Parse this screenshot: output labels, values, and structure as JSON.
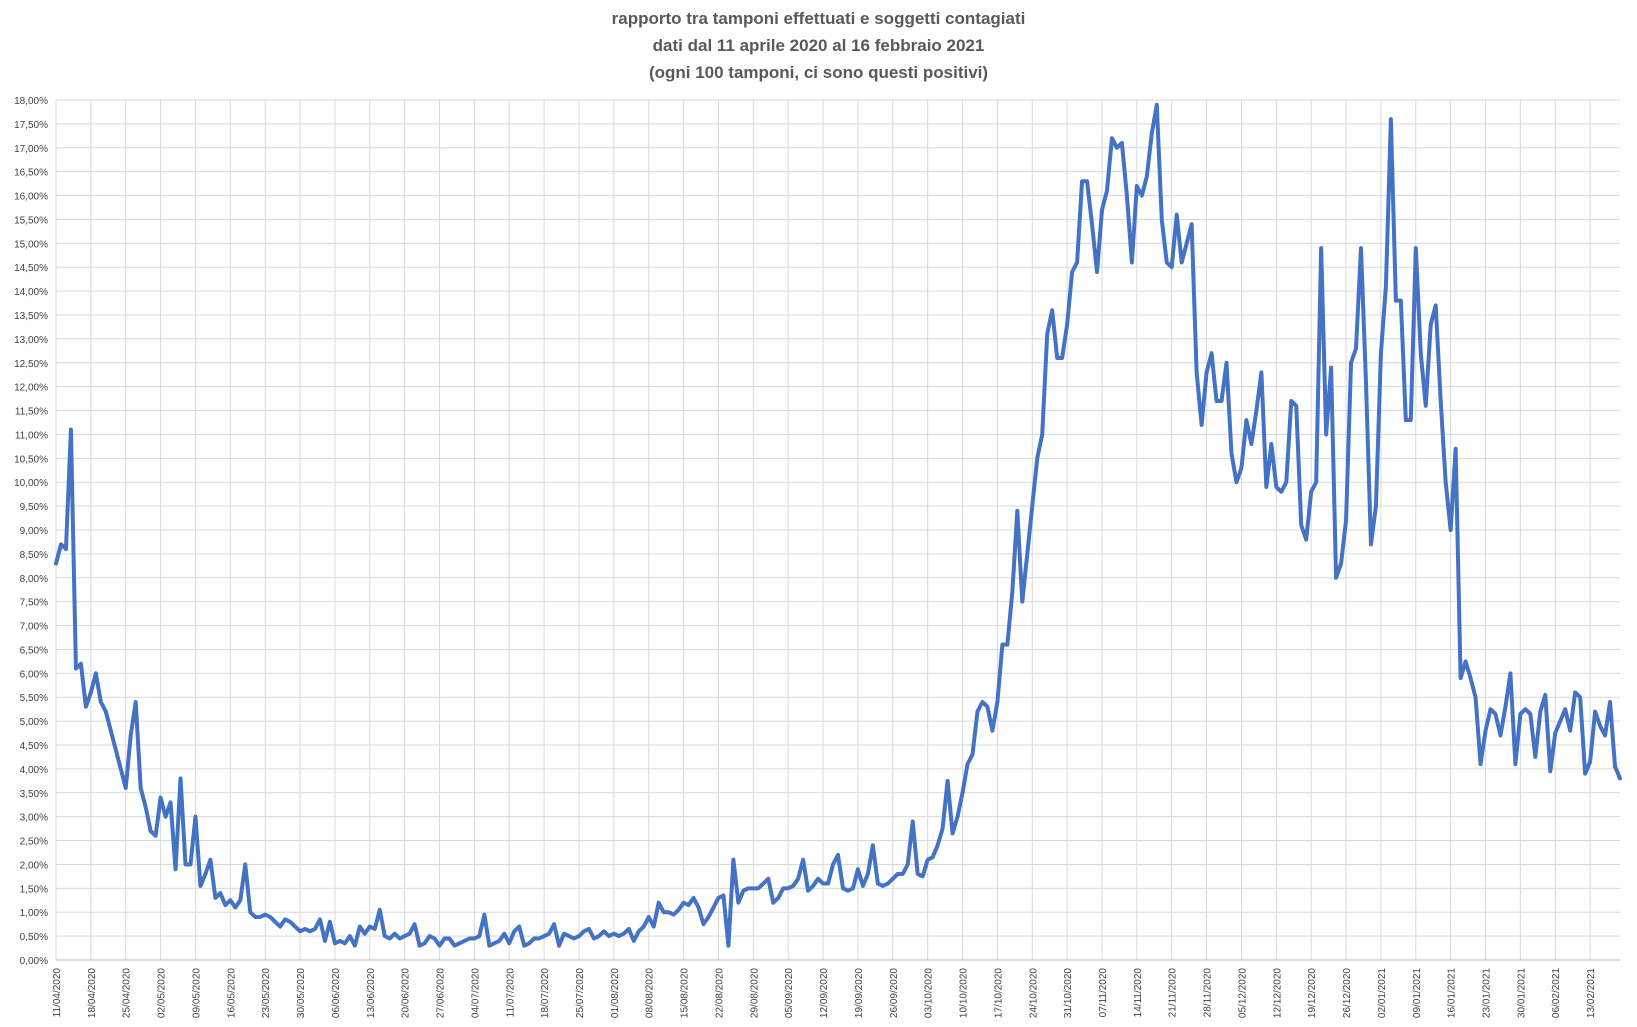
{
  "chart_data": {
    "type": "line",
    "title_lines": [
      "rapporto tra tamponi effettuati e soggetti contagiati",
      "dati dal 11 aprile 2020 al 16 febbraio 2021",
      "(ogni 100 tamponi, ci sono questi positivi)"
    ],
    "xlabel": "",
    "ylabel": "",
    "ylim": [
      0,
      18
    ],
    "y_tick_labels": [
      "0,00%",
      "0,50%",
      "1,00%",
      "1,50%",
      "2,00%",
      "2,50%",
      "3,00%",
      "3,50%",
      "4,00%",
      "4,50%",
      "5,00%",
      "5,50%",
      "6,00%",
      "6,50%",
      "7,00%",
      "7,50%",
      "8,00%",
      "8,50%",
      "9,00%",
      "9,50%",
      "10,00%",
      "10,50%",
      "11,00%",
      "11,50%",
      "12,00%",
      "12,50%",
      "13,00%",
      "13,50%",
      "14,00%",
      "14,50%",
      "15,00%",
      "15,50%",
      "16,00%",
      "16,50%",
      "17,00%",
      "17,50%",
      "18,00%"
    ],
    "x_tick_labels": [
      "11/04/2020",
      "18/04/2020",
      "25/04/2020",
      "02/05/2020",
      "09/05/2020",
      "16/05/2020",
      "23/05/2020",
      "30/05/2020",
      "06/06/2020",
      "13/06/2020",
      "20/06/2020",
      "27/06/2020",
      "04/07/2020",
      "11/07/2020",
      "18/07/2020",
      "25/07/2020",
      "01/08/2020",
      "08/08/2020",
      "15/08/2020",
      "22/08/2020",
      "29/08/2020",
      "05/09/2020",
      "12/09/2020",
      "19/09/2020",
      "26/09/2020",
      "03/10/2020",
      "10/10/2020",
      "17/10/2020",
      "24/10/2020",
      "31/10/2020",
      "07/11/2020",
      "14/11/2020",
      "21/11/2020",
      "28/11/2020",
      "05/12/2020",
      "12/12/2020",
      "19/12/2020",
      "26/12/2020",
      "02/01/2021",
      "09/01/2021",
      "16/01/2021",
      "23/01/2021",
      "30/01/2021",
      "06/02/2021",
      "13/02/2021"
    ],
    "grid": true,
    "legend": "none",
    "line_color": "#4472C4",
    "series": [
      {
        "values": [
          8.3,
          8.7,
          8.6,
          11.1,
          6.1,
          6.2,
          5.3,
          5.6,
          6.0,
          5.4,
          5.2,
          4.8,
          4.4,
          4.0,
          3.6,
          4.7,
          5.4,
          3.6,
          3.2,
          2.7,
          2.6,
          3.4,
          3.0,
          3.3,
          1.9,
          3.8,
          2.0,
          2.0,
          3.0,
          1.55,
          1.8,
          2.1,
          1.3,
          1.4,
          1.15,
          1.25,
          1.1,
          1.25,
          2.0,
          1.0,
          0.9,
          0.9,
          0.95,
          0.9,
          0.8,
          0.7,
          0.85,
          0.8,
          0.7,
          0.6,
          0.65,
          0.6,
          0.65,
          0.85,
          0.4,
          0.8,
          0.35,
          0.4,
          0.35,
          0.5,
          0.3,
          0.7,
          0.55,
          0.7,
          0.65,
          1.05,
          0.5,
          0.45,
          0.55,
          0.45,
          0.5,
          0.55,
          0.75,
          0.3,
          0.35,
          0.5,
          0.45,
          0.3,
          0.45,
          0.45,
          0.3,
          0.35,
          0.4,
          0.45,
          0.45,
          0.5,
          0.95,
          0.3,
          0.35,
          0.4,
          0.55,
          0.35,
          0.6,
          0.7,
          0.3,
          0.35,
          0.45,
          0.45,
          0.5,
          0.55,
          0.75,
          0.3,
          0.55,
          0.5,
          0.45,
          0.5,
          0.6,
          0.65,
          0.45,
          0.5,
          0.6,
          0.5,
          0.55,
          0.5,
          0.55,
          0.65,
          0.4,
          0.6,
          0.7,
          0.9,
          0.7,
          1.2,
          1.0,
          1.0,
          0.95,
          1.05,
          1.2,
          1.15,
          1.3,
          1.1,
          0.75,
          0.9,
          1.1,
          1.3,
          1.35,
          0.3,
          2.1,
          1.2,
          1.45,
          1.5,
          1.5,
          1.5,
          1.6,
          1.7,
          1.2,
          1.3,
          1.5,
          1.5,
          1.55,
          1.7,
          2.1,
          1.45,
          1.55,
          1.7,
          1.6,
          1.6,
          2.0,
          2.2,
          1.5,
          1.45,
          1.5,
          1.9,
          1.55,
          1.8,
          2.4,
          1.6,
          1.55,
          1.6,
          1.7,
          1.8,
          1.8,
          2.0,
          2.9,
          1.8,
          1.75,
          2.1,
          2.15,
          2.4,
          2.75,
          3.75,
          2.65,
          3.0,
          3.5,
          4.1,
          4.3,
          5.2,
          5.4,
          5.3,
          4.8,
          5.4,
          6.6,
          6.6,
          7.7,
          9.4,
          7.5,
          8.5,
          9.5,
          10.5,
          11.0,
          13.1,
          13.6,
          12.6,
          12.6,
          13.3,
          14.4,
          14.6,
          16.3,
          16.3,
          15.4,
          14.4,
          15.7,
          16.1,
          17.2,
          17.0,
          17.1,
          16.0,
          14.6,
          16.2,
          16.0,
          16.4,
          17.3,
          17.9,
          15.5,
          14.6,
          14.5,
          15.6,
          14.6,
          15.0,
          15.4,
          12.3,
          11.2,
          12.3,
          12.7,
          11.7,
          11.7,
          12.5,
          10.6,
          10.0,
          10.3,
          11.3,
          10.8,
          11.5,
          12.3,
          9.9,
          10.8,
          9.9,
          9.8,
          10.0,
          11.7,
          11.6,
          9.1,
          8.8,
          9.8,
          10.0,
          14.9,
          11.0,
          12.4,
          8.0,
          8.3,
          9.2,
          12.5,
          12.8,
          14.9,
          12.1,
          8.7,
          9.5,
          12.7,
          14.1,
          17.6,
          13.8,
          13.8,
          11.3,
          11.3,
          14.9,
          12.7,
          11.6,
          13.3,
          13.7,
          11.7,
          10.0,
          9.0,
          10.7,
          5.9,
          6.25,
          5.9,
          5.5,
          4.1,
          4.8,
          5.25,
          5.15,
          4.7,
          5.3,
          6.0,
          4.1,
          5.15,
          5.25,
          5.15,
          4.25,
          5.2,
          5.55,
          3.95,
          4.75,
          5.0,
          5.25,
          4.8,
          5.6,
          5.5,
          3.9,
          4.15,
          5.2,
          4.9,
          4.7,
          5.4,
          4.05,
          3.8
        ]
      }
    ]
  }
}
